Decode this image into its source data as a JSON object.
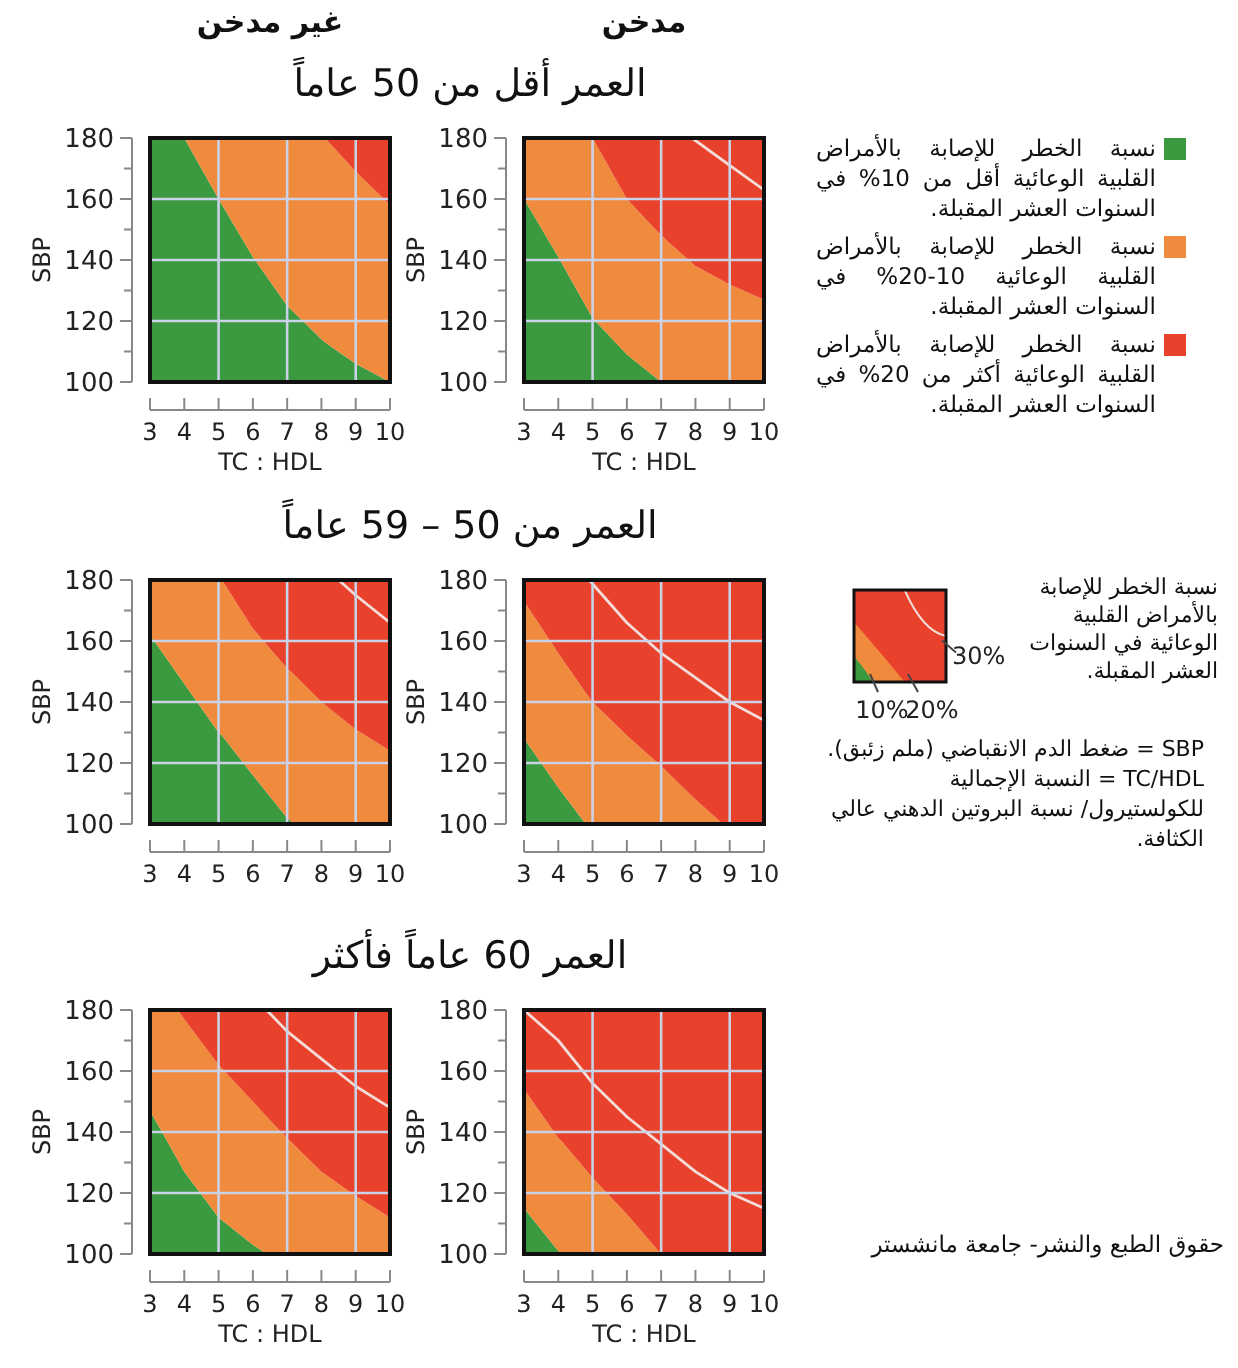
{
  "chart_data": [
    {
      "type": "area",
      "title": "العمر أقل من 50 عاماً",
      "subtitle": "غير مدخن",
      "xlabel": "TC : HDL",
      "ylabel": "SBP",
      "xlim": [
        3,
        10
      ],
      "ylim": [
        100,
        180
      ],
      "xticks": [
        3,
        4,
        5,
        6,
        7,
        8,
        9,
        10
      ],
      "yticks": [
        100,
        {
          "value": 110,
          "label": null
        },
        120,
        {
          "value": 130,
          "label": null
        },
        140,
        {
          "value": 150,
          "label": null
        },
        160,
        {
          "value": 170,
          "label": null
        },
        180
      ],
      "grid": true,
      "x": [
        3,
        4,
        5,
        6,
        7,
        8,
        8.1,
        9,
        10
      ],
      "series": [
        {
          "color": "#3b9a40",
          "values": [
            180,
            180,
            160,
            141,
            125,
            114,
            113,
            106,
            100
          ]
        },
        {
          "color": "#f08a3c",
          "values": [
            null,
            180,
            180,
            180,
            180,
            180,
            180,
            169,
            158
          ]
        },
        {
          "color": "#e8412c",
          "values": [
            null,
            null,
            null,
            null,
            null,
            null,
            180,
            180,
            180
          ]
        }
      ]
    },
    {
      "type": "area",
      "subtitle": "مدخن",
      "xlabel": "TC : HDL",
      "ylabel": "SBP",
      "xlim": [
        3,
        10
      ],
      "ylim": [
        100,
        180
      ],
      "xticks": [
        3,
        4,
        5,
        6,
        7,
        8,
        9,
        10
      ],
      "yticks": [
        100,
        {
          "value": 110,
          "label": null
        },
        120,
        {
          "value": 130,
          "label": null
        },
        140,
        {
          "value": 150,
          "label": null
        },
        160,
        {
          "value": 170,
          "label": null
        },
        180
      ],
      "grid": true,
      "legend": "right",
      "x": [
        3,
        4,
        5,
        6,
        7,
        8,
        9,
        10
      ],
      "series": [
        {
          "name": "نسبة الخطر للإصابة بالأمراض القلبية الوعائية أقل من 10% في السنوات العشر المقبلة.",
          "color": "#3b9a40",
          "values": [
            160,
            141,
            121,
            109,
            100,
            null,
            null,
            null
          ]
        },
        {
          "name": "نسبة الخطر للإصابة بالأمراض القلبية الوعائية 10-20% في السنوات العشر المقبلة.",
          "color": "#f08a3c",
          "values": [
            180,
            180,
            180,
            160,
            148,
            138,
            132,
            127
          ]
        },
        {
          "name": "نسبة الخطر للإصابة بالأمراض القلبية الوعائية أكثر من 20% في السنوات العشر المقبلة.",
          "color": "#e8412c",
          "values": [
            null,
            null,
            180,
            180,
            180,
            180,
            180,
            180
          ]
        },
        {
          "type": "line",
          "color": "#f4dcd8",
          "x": [
            7.9,
            9,
            10
          ],
          "values": [
            180,
            171,
            163
          ]
        }
      ]
    },
    {
      "type": "area",
      "title": "العمر من 50 – 59 عاماً",
      "ylabel": "SBP",
      "xlim": [
        3,
        10
      ],
      "ylim": [
        100,
        180
      ],
      "xticks": [
        3,
        4,
        5,
        6,
        7,
        8,
        9,
        10
      ],
      "yticks": [
        100,
        {
          "value": 110,
          "label": null
        },
        120,
        {
          "value": 130,
          "label": null
        },
        140,
        {
          "value": 150,
          "label": null
        },
        160,
        {
          "value": 170,
          "label": null
        },
        180
      ],
      "grid": true,
      "x": [
        3,
        4,
        5,
        5.1,
        6,
        7,
        7.2,
        8,
        9,
        10
      ],
      "series": [
        {
          "color": "#3b9a40",
          "values": [
            162,
            146,
            130,
            129,
            116,
            102,
            100,
            null,
            null,
            null
          ]
        },
        {
          "color": "#f08a3c",
          "values": [
            180,
            180,
            180,
            180,
            164,
            151,
            149,
            140,
            131,
            124
          ]
        },
        {
          "color": "#e8412c",
          "values": [
            null,
            null,
            null,
            180,
            180,
            180,
            180,
            180,
            180,
            180
          ]
        },
        {
          "type": "line",
          "color": "#f4dcd8",
          "x": [
            8.5,
            9,
            10
          ],
          "values": [
            180,
            175,
            166
          ]
        }
      ]
    },
    {
      "type": "area",
      "ylabel": "SBP",
      "xlim": [
        3,
        10
      ],
      "ylim": [
        100,
        180
      ],
      "xticks": [
        3,
        4,
        5,
        6,
        7,
        8,
        9,
        10
      ],
      "yticks": [
        100,
        {
          "value": 110,
          "label": null
        },
        120,
        {
          "value": 130,
          "label": null
        },
        140,
        {
          "value": 150,
          "label": null
        },
        160,
        {
          "value": 170,
          "label": null
        },
        180
      ],
      "grid": true,
      "annotations": [
        "نسبة الخطر للإصابة بالأمراض القلبية الوعائية في السنوات العشر المقبلة.",
        "30%",
        "10%",
        "20%",
        "SBP = ضغط الدم الانقباضي (ملم زئبق).",
        "TC/HDL = النسبة الإجمالية للكولستيرول/ نسبة البروتين الدهني عالي الكثافة."
      ],
      "x": [
        3,
        4,
        4.8,
        5,
        6,
        7,
        8,
        8.8,
        9,
        10
      ],
      "series": [
        {
          "color": "#3b9a40",
          "values": [
            128,
            112,
            100,
            null,
            null,
            null,
            null,
            null,
            null,
            null
          ]
        },
        {
          "color": "#f08a3c",
          "values": [
            173,
            156,
            143,
            140,
            129,
            119,
            108,
            100,
            null,
            null
          ]
        },
        {
          "color": "#e8412c",
          "values": [
            180,
            180,
            180,
            180,
            180,
            180,
            180,
            180,
            180,
            180
          ]
        },
        {
          "type": "line",
          "color": "#f4dcd8",
          "x": [
            4.9,
            6,
            7,
            8,
            9,
            10
          ],
          "values": [
            180,
            166,
            156,
            148,
            140,
            134
          ]
        }
      ]
    },
    {
      "type": "area",
      "title": "العمر 60 عاماً فأكثر",
      "xlabel": "TC : HDL",
      "ylabel": "SBP",
      "xlim": [
        3,
        10
      ],
      "ylim": [
        100,
        180
      ],
      "xticks": [
        3,
        4,
        5,
        6,
        7,
        8,
        9,
        10
      ],
      "yticks": [
        100,
        {
          "value": 110,
          "label": null
        },
        120,
        {
          "value": 130,
          "label": null
        },
        140,
        {
          "value": 150,
          "label": null
        },
        160,
        {
          "value": 170,
          "label": null
        },
        180
      ],
      "grid": true,
      "x": [
        3,
        3.8,
        4,
        5,
        6,
        6.4,
        7,
        8,
        9,
        10
      ],
      "series": [
        {
          "color": "#3b9a40",
          "values": [
            147,
            131,
            127,
            112,
            103,
            100,
            null,
            null,
            null,
            null
          ]
        },
        {
          "color": "#f08a3c",
          "values": [
            180,
            180,
            177,
            162,
            150,
            145,
            138,
            127,
            119,
            112
          ]
        },
        {
          "color": "#e8412c",
          "values": [
            null,
            180,
            180,
            180,
            180,
            180,
            180,
            180,
            180,
            180
          ]
        },
        {
          "type": "line",
          "color": "#f4dcd8",
          "x": [
            6.4,
            7,
            8,
            9,
            10
          ],
          "values": [
            180,
            173,
            164,
            155,
            148
          ]
        }
      ]
    },
    {
      "type": "area",
      "xlabel": "TC : HDL",
      "ylabel": "SBP",
      "xlim": [
        3,
        10
      ],
      "ylim": [
        100,
        180
      ],
      "xticks": [
        3,
        4,
        5,
        6,
        7,
        8,
        9,
        10
      ],
      "yticks": [
        100,
        {
          "value": 110,
          "label": null
        },
        120,
        {
          "value": 130,
          "label": null
        },
        140,
        {
          "value": 150,
          "label": null
        },
        160,
        {
          "value": 170,
          "label": null
        },
        180
      ],
      "grid": true,
      "annotations": [
        "حقوق الطبع والنشر- جامعة مانشستر"
      ],
      "x": [
        3,
        4,
        4.1,
        5,
        6,
        7,
        8,
        9,
        10
      ],
      "series": [
        {
          "color": "#3b9a40",
          "values": [
            115,
            101,
            100,
            null,
            null,
            null,
            null,
            null,
            null
          ]
        },
        {
          "color": "#f08a3c",
          "values": [
            154,
            138,
            137,
            125,
            113,
            100,
            null,
            null,
            null
          ]
        },
        {
          "color": "#e8412c",
          "values": [
            180,
            180,
            180,
            180,
            180,
            180,
            180,
            180,
            180
          ]
        },
        {
          "type": "line",
          "color": "#f4dcd8",
          "x": [
            3,
            4,
            5,
            6,
            7,
            8,
            9,
            10
          ],
          "values": [
            180,
            170,
            156,
            145,
            136,
            127,
            120,
            115
          ]
        }
      ]
    }
  ]
}
